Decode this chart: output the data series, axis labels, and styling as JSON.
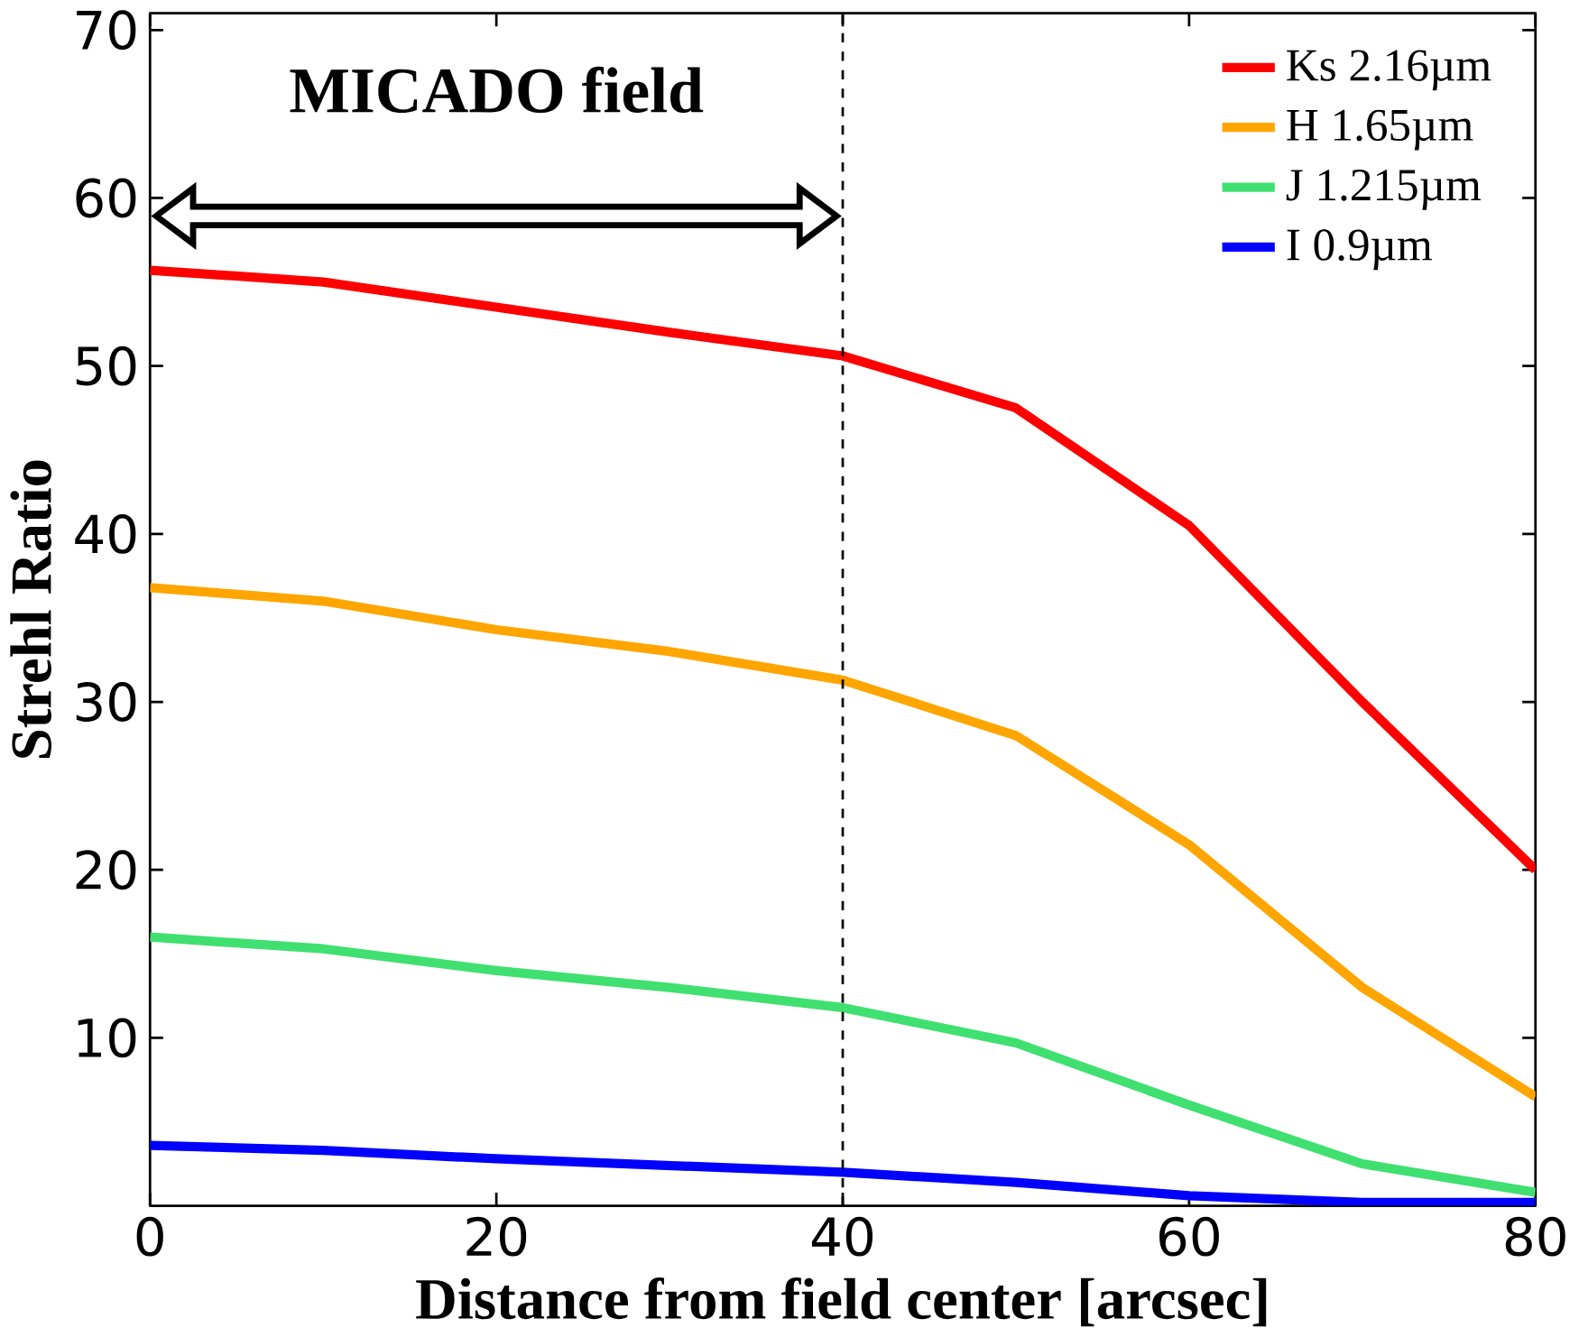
{
  "chart_data": {
    "type": "line",
    "xlabel": "Distance from field center [arcsec]",
    "ylabel": "Strehl Ratio",
    "x": [
      0,
      10,
      20,
      30,
      40,
      50,
      60,
      70,
      80
    ],
    "series": [
      {
        "name": "Ks 2.16µm",
        "color": "#ff0000",
        "values": [
          55.7,
          55,
          53.5,
          52,
          50.6,
          47.5,
          40.5,
          30,
          20
        ]
      },
      {
        "name": "H 1.65µm",
        "color": "#ffa500",
        "values": [
          36.8,
          36,
          34.3,
          33,
          31.3,
          28,
          21.5,
          13,
          6.5
        ]
      },
      {
        "name": "J 1.215µm",
        "color": "#40e070",
        "values": [
          16,
          15.3,
          14,
          13,
          11.8,
          9.7,
          6,
          2.5,
          0.8
        ]
      },
      {
        "name": "I 0.9µm",
        "color": "#0000ff",
        "values": [
          3.6,
          3.3,
          2.8,
          2.4,
          2,
          1.4,
          0.6,
          0.2,
          0.2
        ]
      }
    ],
    "xlim": [
      0,
      80
    ],
    "ylim": [
      0,
      71
    ],
    "xticks": [
      0,
      20,
      40,
      60,
      80
    ],
    "yticks": [
      10,
      20,
      30,
      40,
      50,
      60,
      70
    ],
    "ref_lines": [
      {
        "axis": "x",
        "value": 40,
        "line_style": "dashed",
        "color": "#000000"
      }
    ],
    "annotations": [
      "MICADO field"
    ],
    "legend": "top right",
    "marker": "none",
    "line_style": "solid",
    "grid": false
  }
}
